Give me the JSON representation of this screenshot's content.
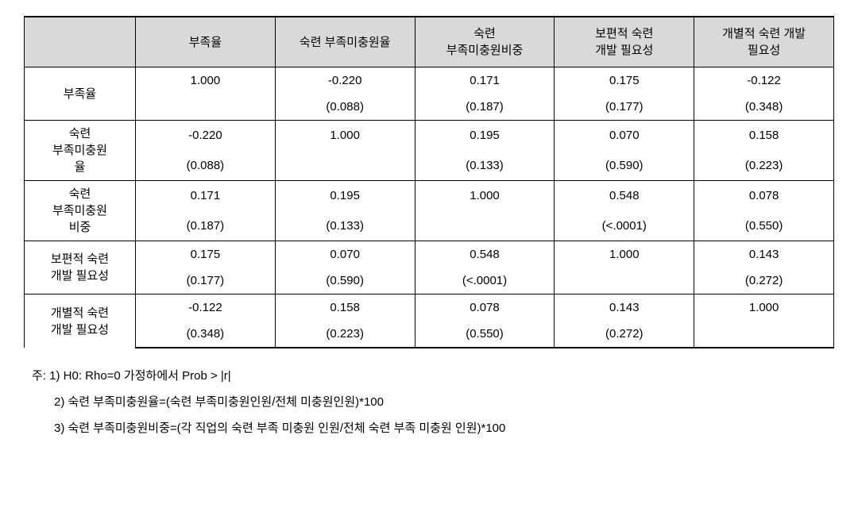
{
  "table": {
    "headers": [
      "",
      "부족율",
      "숙련 부족미충원율",
      "숙련\n부족미충원비중",
      "보편적 숙련\n개발 필요성",
      "개별적 숙련 개발\n필요성"
    ],
    "rows": [
      {
        "label": "부족율",
        "values": [
          "1.000",
          "-0.220",
          "0.171",
          "0.175",
          "-0.122"
        ],
        "pvals": [
          "",
          "(0.088)",
          "(0.187)",
          "(0.177)",
          "(0.348)"
        ]
      },
      {
        "label": "숙련\n부족미충원\n율",
        "values": [
          "-0.220",
          "1.000",
          "0.195",
          "0.070",
          "0.158"
        ],
        "pvals": [
          "(0.088)",
          "",
          "(0.133)",
          "(0.590)",
          "(0.223)"
        ]
      },
      {
        "label": "숙련\n부족미충원\n비중",
        "values": [
          "0.171",
          "0.195",
          "1.000",
          "0.548",
          "0.078"
        ],
        "pvals": [
          "(0.187)",
          "(0.133)",
          "",
          "(<.0001)",
          "(0.550)"
        ]
      },
      {
        "label": "보편적 숙련\n개발 필요성",
        "values": [
          "0.175",
          "0.070",
          "0.548",
          "1.000",
          "0.143"
        ],
        "pvals": [
          "(0.177)",
          "(0.590)",
          "(<.0001)",
          "",
          "(0.272)"
        ]
      },
      {
        "label": "개별적 숙련\n개발 필요성",
        "values": [
          "-0.122",
          "0.158",
          "0.078",
          "0.143",
          "1.000"
        ],
        "pvals": [
          "(0.348)",
          "(0.223)",
          "(0.550)",
          "(0.272)",
          ""
        ]
      }
    ]
  },
  "notes": [
    "주: 1) H0: Rho=0 가정하에서 Prob > |r|",
    "2) 숙련 부족미충원율=(숙련 부족미충원인원/전체 미충원인원)*100",
    "3) 숙련 부족미충원비중=(각 직업의 숙련 부족 미충원 인원/전체 숙련 부족 미충원 인원)*100"
  ]
}
